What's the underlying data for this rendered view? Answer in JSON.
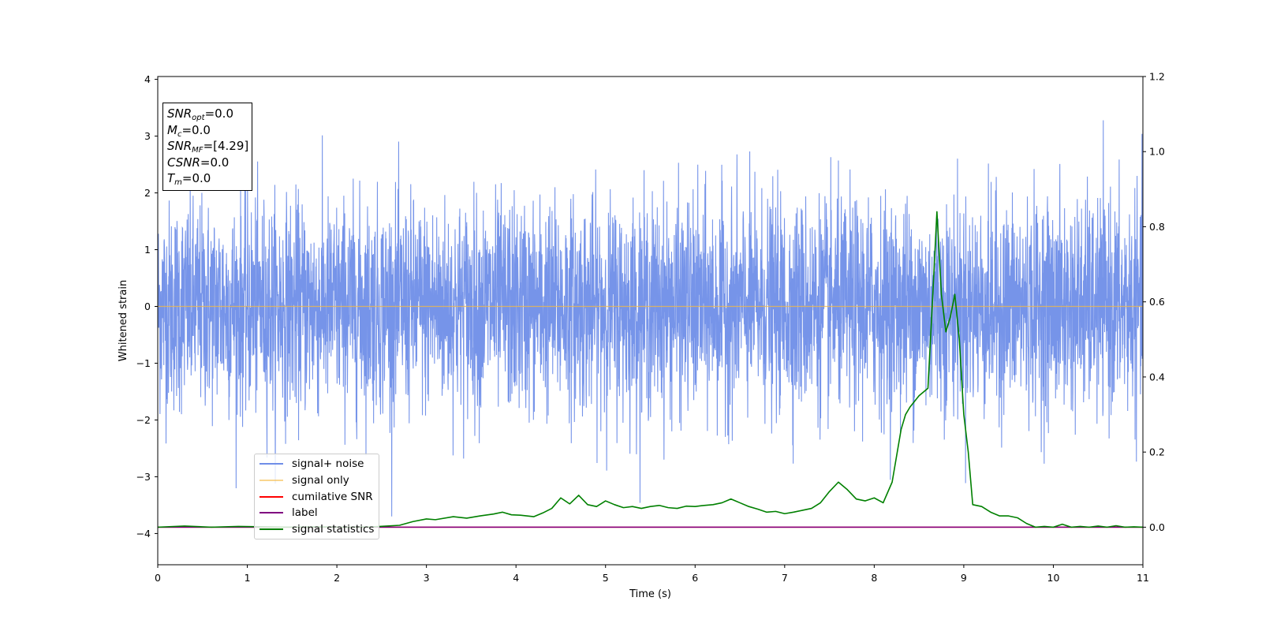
{
  "chart_data": {
    "type": "line",
    "xlabel": "Time (s)",
    "ylabel": "Whitened strain",
    "xlim": [
      0,
      11
    ],
    "ylim_left": [
      -4.55,
      4.05
    ],
    "ylim_right": [
      -0.1,
      1.2
    ],
    "x_ticks": [
      "0",
      "1",
      "2",
      "3",
      "4",
      "5",
      "6",
      "7",
      "8",
      "9",
      "10",
      "11"
    ],
    "y_left_ticks": [
      "4",
      "3",
      "2",
      "1",
      "0",
      "−1",
      "−2",
      "−3",
      "−4"
    ],
    "y_left_tick_values": [
      4,
      3,
      2,
      1,
      0,
      -1,
      -2,
      -3,
      -4
    ],
    "y_right_ticks": [
      "1.2",
      "1.0",
      "0.8",
      "0.6",
      "0.4",
      "0.2",
      "0.0"
    ],
    "y_right_tick_values": [
      1.2,
      1.0,
      0.8,
      0.6,
      0.4,
      0.2,
      0.0
    ],
    "grid": false,
    "legend_position": "bottom-left",
    "series": [
      {
        "name": "signal+ noise",
        "axis": "left",
        "color": "#6f8ee8",
        "style": "dense noise",
        "approx_range": [
          -4.15,
          3.65
        ]
      },
      {
        "name": "signal only",
        "axis": "left",
        "color": "#f5b942",
        "x": [
          0,
          11
        ],
        "y": [
          0,
          0
        ]
      },
      {
        "name": "cumilative SNR",
        "axis": "right",
        "color": "#ff0000",
        "x": [
          0,
          11
        ],
        "y": [
          0,
          0
        ]
      },
      {
        "name": "label",
        "axis": "right",
        "color": "#800080",
        "x": [
          0,
          11
        ],
        "y": [
          0,
          0
        ]
      },
      {
        "name": "signal statistics",
        "axis": "right",
        "color": "#008000",
        "x": [
          0,
          0.3,
          0.6,
          0.9,
          1.2,
          1.5,
          1.8,
          2.1,
          2.4,
          2.7,
          2.85,
          3.0,
          3.1,
          3.3,
          3.45,
          3.6,
          3.75,
          3.85,
          3.95,
          4.05,
          4.2,
          4.3,
          4.4,
          4.5,
          4.6,
          4.7,
          4.8,
          4.9,
          5.0,
          5.1,
          5.2,
          5.3,
          5.4,
          5.5,
          5.6,
          5.7,
          5.8,
          5.9,
          6.0,
          6.1,
          6.2,
          6.3,
          6.4,
          6.5,
          6.6,
          6.7,
          6.8,
          6.9,
          7.0,
          7.1,
          7.2,
          7.3,
          7.4,
          7.5,
          7.6,
          7.7,
          7.8,
          7.9,
          8.0,
          8.1,
          8.2,
          8.3,
          8.35,
          8.4,
          8.5,
          8.6,
          8.65,
          8.7,
          8.75,
          8.8,
          8.85,
          8.9,
          8.95,
          9.0,
          9.05,
          9.1,
          9.2,
          9.3,
          9.4,
          9.5,
          9.6,
          9.7,
          9.8,
          9.9,
          10.0,
          10.1,
          10.2,
          10.3,
          10.4,
          10.5,
          10.6,
          10.7,
          10.8,
          10.9,
          11.0
        ],
        "y": [
          0.0,
          0.003,
          0.0,
          0.002,
          0.001,
          0.0,
          0.001,
          0.0,
          0.001,
          0.005,
          0.015,
          0.022,
          0.02,
          0.028,
          0.024,
          0.03,
          0.035,
          0.04,
          0.033,
          0.032,
          0.028,
          0.038,
          0.05,
          0.078,
          0.062,
          0.085,
          0.06,
          0.055,
          0.07,
          0.06,
          0.052,
          0.055,
          0.05,
          0.055,
          0.058,
          0.052,
          0.05,
          0.056,
          0.055,
          0.058,
          0.06,
          0.065,
          0.075,
          0.065,
          0.055,
          0.048,
          0.04,
          0.042,
          0.036,
          0.04,
          0.045,
          0.05,
          0.065,
          0.095,
          0.12,
          0.1,
          0.075,
          0.07,
          0.078,
          0.065,
          0.12,
          0.26,
          0.3,
          0.32,
          0.35,
          0.37,
          0.6,
          0.84,
          0.62,
          0.52,
          0.56,
          0.62,
          0.5,
          0.3,
          0.2,
          0.06,
          0.055,
          0.04,
          0.03,
          0.03,
          0.025,
          0.01,
          0.0,
          0.002,
          0.0,
          0.008,
          0.0,
          0.002,
          0.0,
          0.003,
          0.0,
          0.004,
          0.0,
          0.001,
          0.0
        ]
      }
    ],
    "annotation": {
      "lines": [
        {
          "label": "SNR",
          "sub": "opt",
          "value": "=0.0"
        },
        {
          "label": "M",
          "sub": "c",
          "value": "=0.0"
        },
        {
          "label": "SNR",
          "sub": "MF",
          "value": "=[4.29]"
        },
        {
          "label": "CSNR",
          "sub": "",
          "value": "=0.0"
        },
        {
          "label": "T",
          "sub": "m",
          "value": "=0.0"
        }
      ]
    }
  }
}
